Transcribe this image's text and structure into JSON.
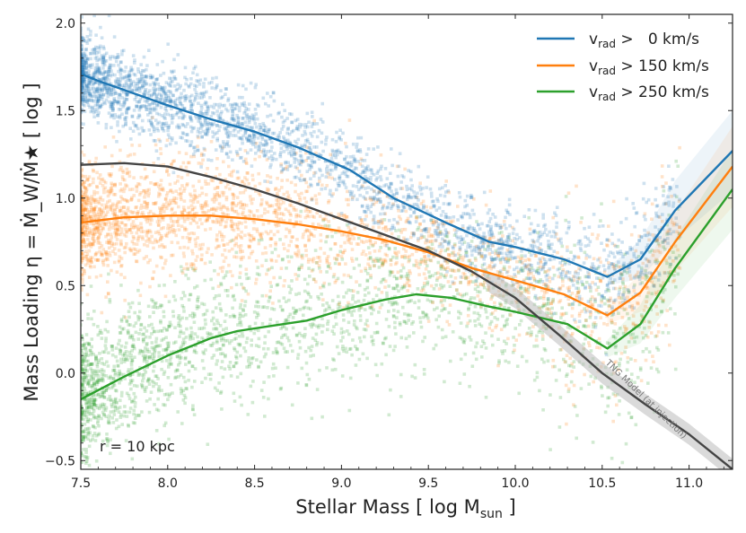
{
  "chart_data": {
    "type": "scatter",
    "title": "",
    "xlabel_main": "Stellar Mass [ log M",
    "xlabel_sub": "sun",
    "xlabel_end": " ]",
    "ylabel": "Mass Loading η = Ṁ_W/Ṁ★  [ log ]",
    "xlim": [
      7.5,
      11.25
    ],
    "ylim": [
      -0.55,
      2.05
    ],
    "x_ticks": [
      7.5,
      8.0,
      8.5,
      9.0,
      9.5,
      10.0,
      10.5,
      11.0
    ],
    "y_ticks": [
      -0.5,
      0.0,
      0.5,
      1.0,
      1.5,
      2.0
    ],
    "x_tick_labels": [
      "7.5",
      "8.0",
      "8.5",
      "9.0",
      "9.5",
      "10.0",
      "10.5",
      "11.0"
    ],
    "y_tick_labels": [
      "−0.5",
      "0.0",
      "0.5",
      "1.0",
      "1.5",
      "2.0"
    ],
    "annotation": "r =  10 kpc",
    "model_label": "TNG Model (at injection)",
    "model_color": "#444444",
    "series": [
      {
        "name": "vrad > 0 km/s",
        "legend_main": "v",
        "legend_sub": "rad",
        "legend_rest": " >   0 km/s",
        "color": "#1f77b4",
        "x": [
          7.5,
          7.6,
          7.8,
          8.0,
          8.25,
          8.5,
          8.75,
          9.05,
          9.3,
          9.6,
          9.85,
          10.0,
          10.28,
          10.53,
          10.72,
          10.92,
          11.25
        ],
        "y": [
          1.71,
          1.67,
          1.6,
          1.53,
          1.45,
          1.38,
          1.29,
          1.16,
          1.0,
          0.86,
          0.75,
          0.72,
          0.65,
          0.55,
          0.65,
          0.93,
          1.27
        ]
      },
      {
        "name": "vrad > 150 km/s",
        "legend_main": "v",
        "legend_sub": "rad",
        "legend_rest": " > 150 km/s",
        "color": "#ff7f0e",
        "x": [
          7.5,
          7.75,
          8.0,
          8.25,
          8.5,
          8.75,
          9.0,
          9.25,
          9.5,
          9.75,
          10.0,
          10.28,
          10.53,
          10.72,
          10.92,
          11.25
        ],
        "y": [
          0.86,
          0.89,
          0.9,
          0.9,
          0.88,
          0.85,
          0.81,
          0.76,
          0.69,
          0.6,
          0.53,
          0.45,
          0.33,
          0.46,
          0.75,
          1.18
        ]
      },
      {
        "name": "vrad > 250 km/s",
        "legend_main": "v",
        "legend_sub": "rad",
        "legend_rest": " > 250 km/s",
        "color": "#2ca02c",
        "x": [
          7.5,
          7.75,
          8.0,
          8.25,
          8.4,
          8.6,
          8.8,
          9.0,
          9.25,
          9.43,
          9.63,
          9.85,
          10.0,
          10.3,
          10.53,
          10.72,
          10.92,
          11.25
        ],
        "y": [
          -0.15,
          -0.02,
          0.1,
          0.2,
          0.24,
          0.27,
          0.3,
          0.36,
          0.42,
          0.45,
          0.43,
          0.38,
          0.35,
          0.28,
          0.14,
          0.28,
          0.6,
          1.05
        ]
      },
      {
        "name": "TNG Model (at injection)",
        "color": "#444444",
        "x": [
          7.5,
          7.75,
          8.0,
          8.25,
          8.5,
          8.75,
          9.0,
          9.25,
          9.5,
          9.75,
          10.0,
          10.25,
          10.5,
          10.75,
          11.0,
          11.25
        ],
        "y": [
          1.19,
          1.2,
          1.18,
          1.12,
          1.05,
          0.97,
          0.88,
          0.79,
          0.7,
          0.58,
          0.43,
          0.22,
          0.0,
          -0.18,
          -0.35,
          -0.55
        ]
      }
    ]
  }
}
